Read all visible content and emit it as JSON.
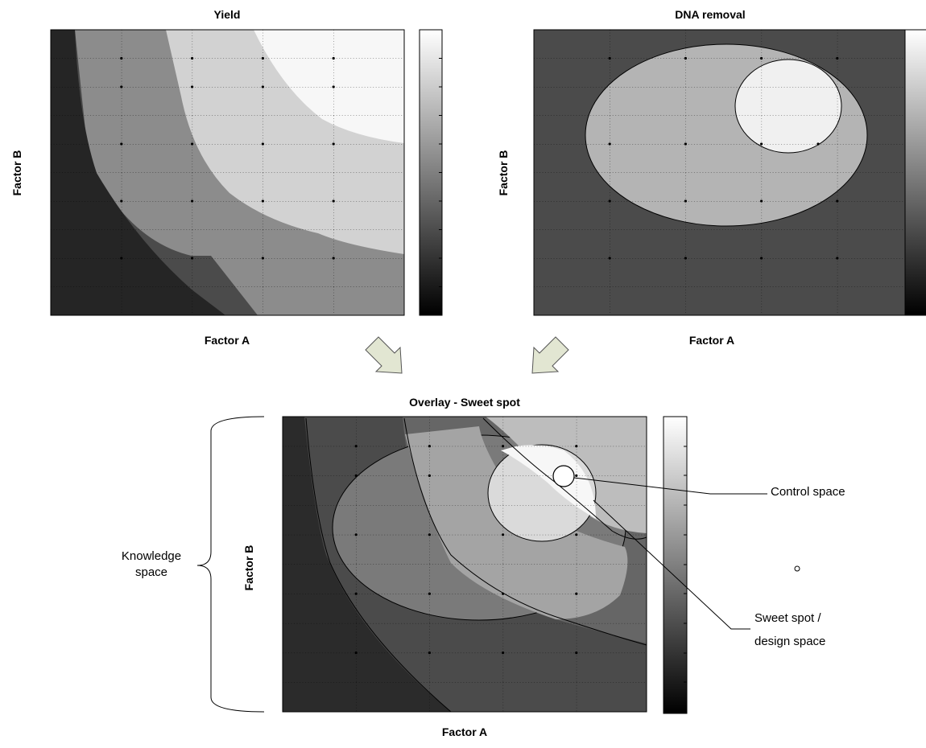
{
  "panels": {
    "yield": {
      "title": "Yield",
      "xlabel": "Factor A",
      "ylabel": "Factor B"
    },
    "dna": {
      "title": "DNA removal",
      "xlabel": "Factor A",
      "ylabel": "Factor B"
    },
    "overlay": {
      "title": "Overlay - Sweet spot",
      "xlabel": "Factor A",
      "ylabel": "Factor B"
    }
  },
  "annotations": {
    "knowledge_line1": "Knowledge",
    "knowledge_line2": "space",
    "control_space": "Control space",
    "sweet_line1": "Sweet spot /",
    "sweet_line2": "design space"
  },
  "colors": {
    "level_darkest": "#252525",
    "level_dark": "#4b4b4b",
    "level_mid": "#8c8c8c",
    "level_light": "#d2d2d2",
    "level_lightest": "#f7f7f7",
    "arrow_fill": "#e2e6d2"
  }
}
